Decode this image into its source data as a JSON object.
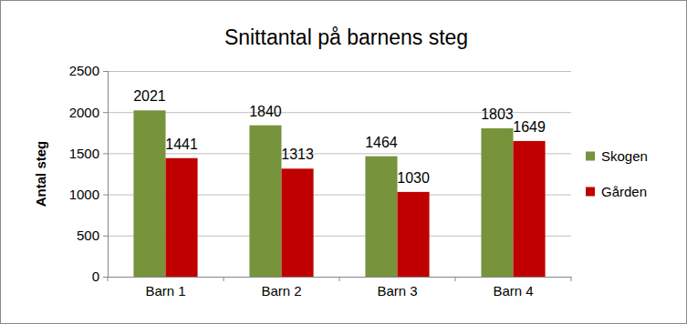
{
  "chart_data": {
    "type": "bar",
    "title": "Snittantal på barnens steg",
    "y_label": "Antal steg",
    "categories": [
      "Barn 1",
      "Barn 2",
      "Barn 3",
      "Barn 4"
    ],
    "series": [
      {
        "name": "Skogen",
        "color": "#77933c",
        "values": [
          2021,
          1840,
          1464,
          1803
        ]
      },
      {
        "name": "Gården",
        "color": "#c00000",
        "values": [
          1441,
          1313,
          1030,
          1649
        ]
      }
    ],
    "ylim": [
      0,
      2500
    ],
    "yticks": [
      0,
      500,
      1000,
      1500,
      2000,
      2500
    ],
    "grid": true,
    "legend": "right",
    "data_labels": true
  }
}
